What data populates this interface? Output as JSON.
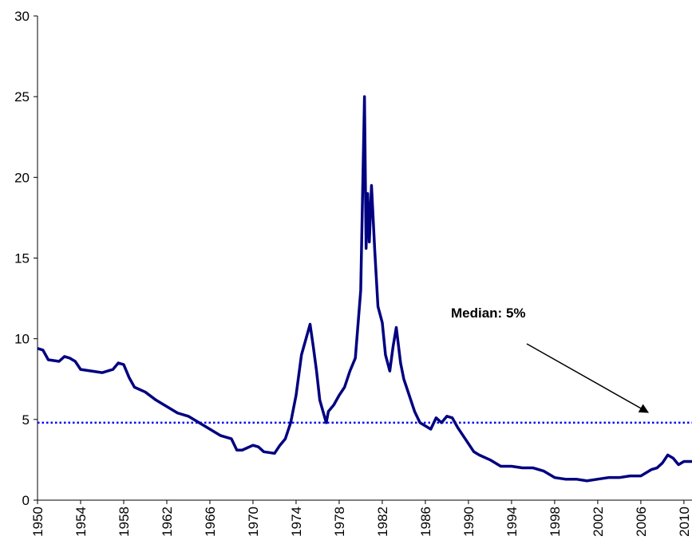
{
  "chart_data": {
    "type": "line",
    "x": [
      1950,
      1950.5,
      1951,
      1952,
      1952.5,
      1953,
      1953.5,
      1954,
      1955,
      1956,
      1957,
      1957.5,
      1958,
      1958.5,
      1959,
      1960,
      1961,
      1962,
      1963,
      1964,
      1965,
      1966,
      1967,
      1968,
      1968.5,
      1969,
      1970,
      1970.5,
      1971,
      1972,
      1972.5,
      1973,
      1973.5,
      1974,
      1974.5,
      1975.3,
      1975.6,
      1975.9,
      1976.2,
      1976.5,
      1976.8,
      1977,
      1977.5,
      1978,
      1978.5,
      1979,
      1979.5,
      1980,
      1980.35,
      1980.5,
      1980.65,
      1980.8,
      1981,
      1981.3,
      1981.6,
      1982,
      1982.3,
      1982.7,
      1983,
      1983.3,
      1983.7,
      1984,
      1984.5,
      1985,
      1985.5,
      1986,
      1986.5,
      1987,
      1987.5,
      1988,
      1988.5,
      1989,
      1989.5,
      1990,
      1990.5,
      1991,
      1992,
      1993,
      1994,
      1995,
      1996,
      1997,
      1998,
      1999,
      2000,
      2001,
      2002,
      2003,
      2004,
      2005,
      2006,
      2007,
      2007.5,
      2008,
      2008.5,
      2009,
      2009.5,
      2010,
      2010.75
    ],
    "values": [
      9.4,
      9.3,
      8.7,
      8.6,
      8.9,
      8.8,
      8.6,
      8.1,
      8.0,
      7.9,
      8.1,
      8.5,
      8.4,
      7.6,
      7.0,
      6.7,
      6.2,
      5.8,
      5.4,
      5.2,
      4.8,
      4.4,
      4.0,
      3.8,
      3.1,
      3.1,
      3.4,
      3.3,
      3.0,
      2.9,
      3.4,
      3.8,
      4.8,
      6.5,
      9.0,
      10.9,
      9.5,
      8.0,
      6.2,
      5.5,
      4.8,
      5.5,
      5.9,
      6.5,
      7.0,
      8.0,
      8.8,
      13.0,
      25.0,
      15.6,
      19.0,
      16.0,
      19.5,
      15.5,
      12.0,
      11.0,
      9.0,
      8.0,
      9.5,
      10.7,
      8.5,
      7.5,
      6.5,
      5.5,
      4.8,
      4.6,
      4.4,
      5.1,
      4.8,
      5.2,
      5.1,
      4.5,
      4.0,
      3.5,
      3.0,
      2.8,
      2.5,
      2.1,
      2.1,
      2.0,
      2.0,
      1.8,
      1.4,
      1.3,
      1.3,
      1.2,
      1.3,
      1.4,
      1.4,
      1.5,
      1.5,
      1.9,
      2.0,
      2.3,
      2.8,
      2.6,
      2.2,
      2.4,
      2.4
    ],
    "color": "#000080",
    "median": 4.8,
    "median_color": "#0000ff",
    "annotation": "Median: 5%",
    "xlim": [
      1950,
      2010.75
    ],
    "xticks": [
      1950,
      1954,
      1958,
      1962,
      1966,
      1970,
      1974,
      1978,
      1982,
      1986,
      1990,
      1994,
      1998,
      2002,
      2006,
      2010
    ],
    "ylim": [
      0,
      30
    ],
    "yticks": [
      0,
      5,
      10,
      15,
      20,
      25,
      30
    ]
  }
}
